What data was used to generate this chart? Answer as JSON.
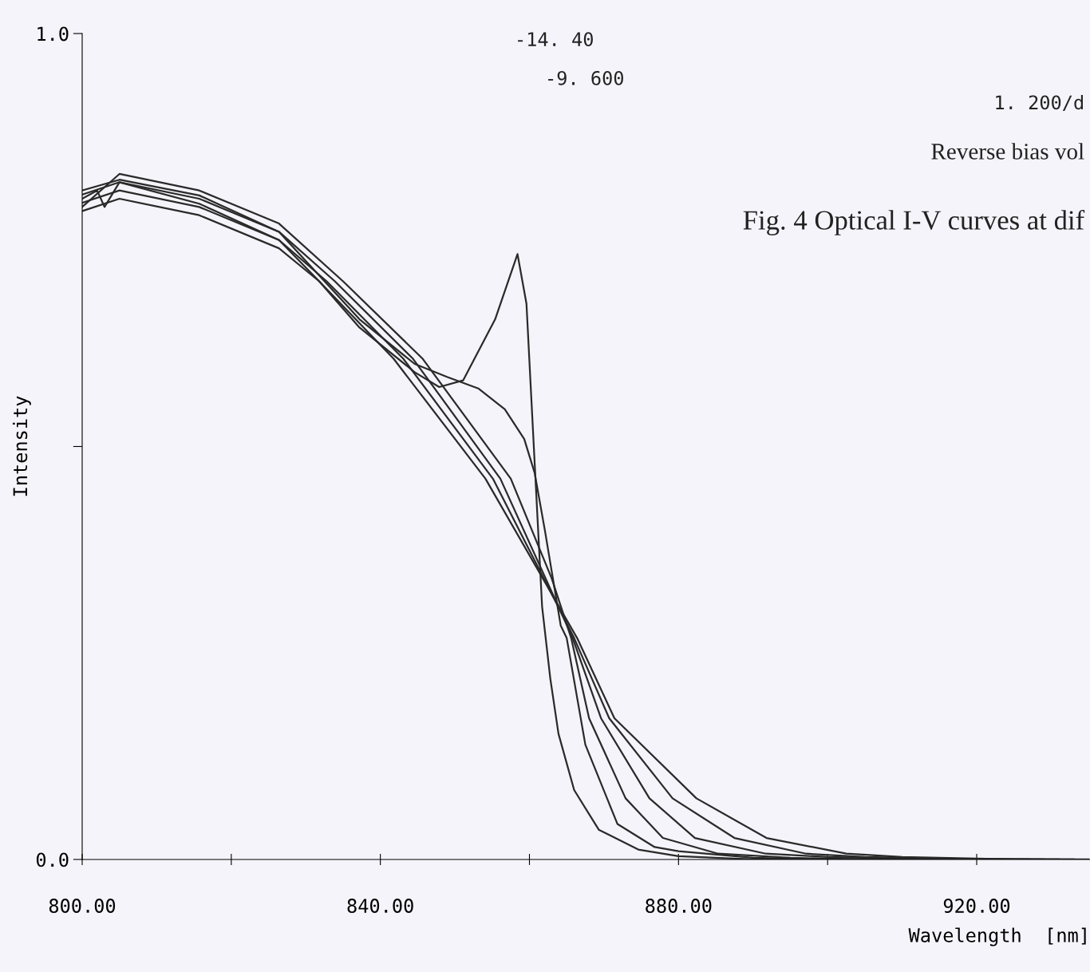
{
  "chart_data": {
    "type": "line",
    "xlabel": "Wavelength  [nm]",
    "ylabel": "Intensity",
    "xlim": [
      800,
      935.2
    ],
    "ylim": [
      0,
      1.0
    ],
    "xticks": [
      {
        "value": 800,
        "label": "800.00"
      },
      {
        "value": 820,
        "label": null
      },
      {
        "value": 840,
        "label": "840.00"
      },
      {
        "value": 860,
        "label": null
      },
      {
        "value": 880,
        "label": "880.00"
      },
      {
        "value": 900,
        "label": null
      },
      {
        "value": 920,
        "label": "920.00"
      }
    ],
    "yticks": [
      {
        "value": 0,
        "label": "0.0"
      },
      {
        "value": 0.5,
        "label": null
      },
      {
        "value": 1.0,
        "label": "1.0"
      }
    ],
    "grid": false,
    "legend": false,
    "marker": "none",
    "line_style": "solid",
    "series": [
      {
        "color": "#2a2a2a",
        "x": [
          800,
          802,
          803,
          805,
          815.7,
          826.4,
          831.8,
          837.2,
          844.6,
          847.9,
          851.1,
          855.4,
          858.4,
          859.6,
          860.7,
          861.7,
          862.8,
          863.9,
          866.0,
          869.3,
          874.6,
          880.0,
          890,
          935
        ],
        "values": [
          0.8,
          0.81,
          0.79,
          0.82,
          0.794,
          0.75,
          0.7,
          0.644,
          0.59,
          0.572,
          0.58,
          0.654,
          0.733,
          0.673,
          0.48,
          0.306,
          0.219,
          0.152,
          0.084,
          0.036,
          0.012,
          0.004,
          0.0,
          0.0
        ]
      },
      {
        "color": "#2a2a2a",
        "x": [
          800,
          805,
          815.7,
          826.4,
          837.2,
          844.6,
          849,
          853.2,
          856.7,
          859.3,
          860.7,
          862.1,
          864.2,
          865.0,
          867.5,
          871.8,
          876.8,
          880,
          890,
          900,
          933
        ],
        "values": [
          0.81,
          0.823,
          0.804,
          0.76,
          0.654,
          0.6,
          0.584,
          0.57,
          0.545,
          0.509,
          0.468,
          0.397,
          0.283,
          0.268,
          0.139,
          0.043,
          0.015,
          0.01,
          0.002,
          0.0,
          0.0
        ]
      },
      {
        "color": "#2a2a2a",
        "x": [
          800,
          805,
          815.7,
          826.4,
          835,
          845.7,
          857.5,
          863,
          865.6,
          868.0,
          872.9,
          877.9,
          885.3,
          895,
          905,
          931
        ],
        "values": [
          0.79,
          0.83,
          0.81,
          0.77,
          0.7,
          0.606,
          0.461,
          0.34,
          0.268,
          0.171,
          0.074,
          0.026,
          0.007,
          0.002,
          0.0,
          0.0
        ]
      },
      {
        "color": "#2a2a2a",
        "x": [
          800,
          805,
          815.7,
          826.4,
          833.9,
          844.4,
          856.1,
          865.8,
          869.6,
          876.1,
          882.2,
          891.7,
          900,
          910,
          929
        ],
        "values": [
          0.805,
          0.82,
          0.8,
          0.76,
          0.7,
          0.606,
          0.461,
          0.268,
          0.171,
          0.074,
          0.026,
          0.007,
          0.003,
          0.001,
          0.0
        ]
      },
      {
        "color": "#2a2a2a",
        "x": [
          800,
          805,
          815.7,
          826.4,
          832.8,
          843.1,
          855.1,
          866.0,
          870.7,
          879.2,
          887.5,
          897.1,
          905,
          915,
          927
        ],
        "values": [
          0.795,
          0.81,
          0.79,
          0.75,
          0.7,
          0.606,
          0.461,
          0.268,
          0.171,
          0.074,
          0.026,
          0.007,
          0.003,
          0.001,
          0.0
        ]
      },
      {
        "color": "#2a2a2a",
        "x": [
          800,
          805,
          815.7,
          826.4,
          831.8,
          841.8,
          854.1,
          866.4,
          871.4,
          882.4,
          891.8,
          902.5,
          910,
          920,
          925
        ],
        "values": [
          0.785,
          0.8,
          0.78,
          0.74,
          0.7,
          0.606,
          0.461,
          0.268,
          0.171,
          0.074,
          0.026,
          0.007,
          0.003,
          0.001,
          0.0
        ]
      }
    ],
    "annotations": [
      "-14. 40",
      "-9. 600",
      "1. 200/d",
      "Reverse bias vol",
      "Fig. 4 Optical I-V curves at dif"
    ]
  }
}
